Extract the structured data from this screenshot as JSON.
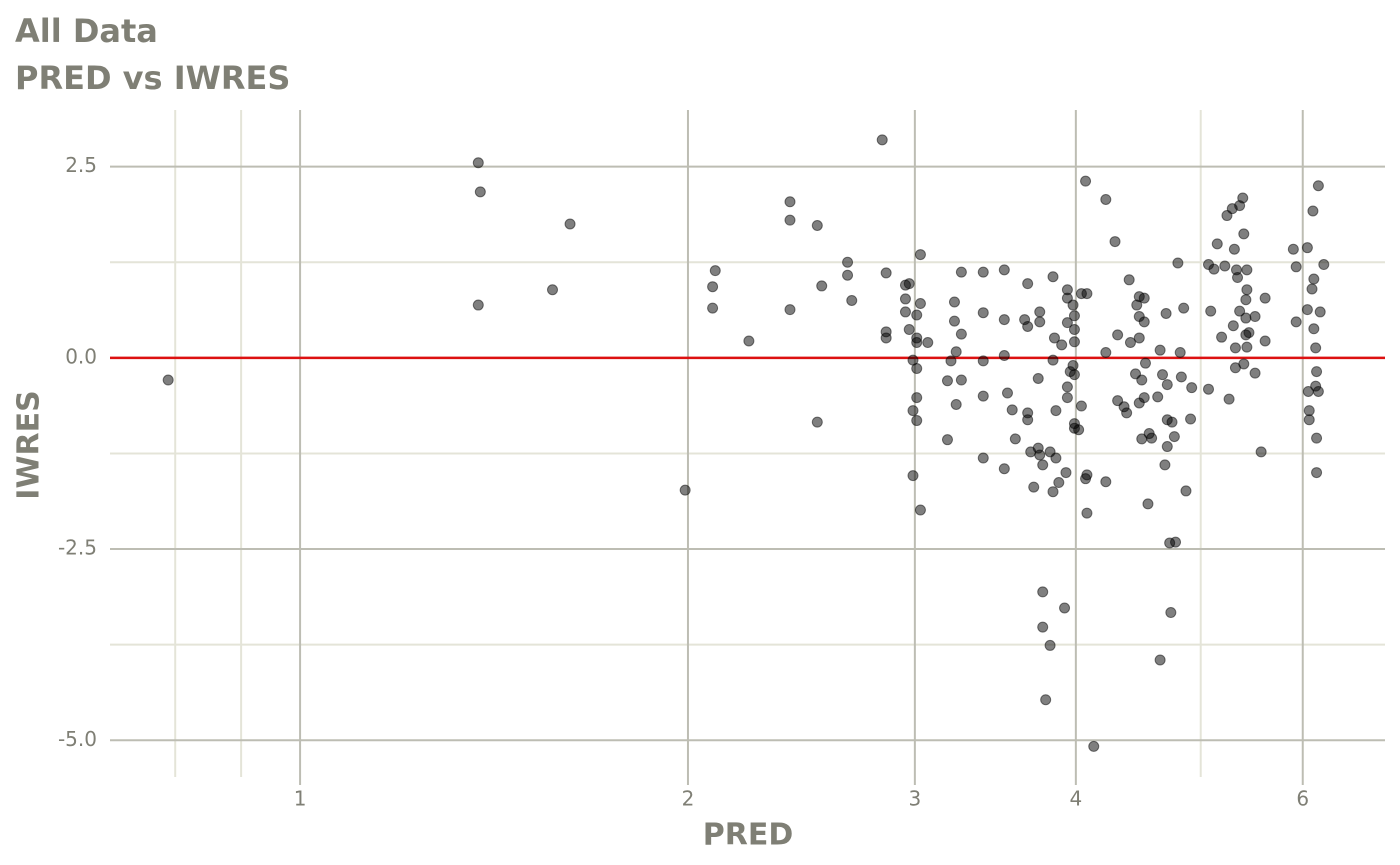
{
  "chart_data": {
    "type": "scatter",
    "title": "All Data",
    "subtitle": "PRED vs IWRES",
    "x_label": "PRED",
    "y_label": "IWRES",
    "log_x": true,
    "grid": true,
    "color": "#000000",
    "opacity": 0.5,
    "xlim": [
      0.712,
      6.95
    ],
    "xticks": [
      1,
      2,
      3,
      4,
      6
    ],
    "xminorticks": [
      0.8,
      0.9,
      5
    ],
    "ylim": [
      -5.48,
      3.24
    ],
    "yticks": [
      {
        "value": -5,
        "label": "-5.0"
      },
      -2.5,
      {
        "value": 0,
        "label": "0.0"
      },
      2.5
    ],
    "yminorticks": [
      -3.75,
      -1.25,
      1.25
    ],
    "hline": {
      "value": 0,
      "color": "#dd1111"
    },
    "x": [
      0.79,
      1.375,
      1.38,
      1.375,
      1.57,
      1.62,
      1.99,
      2.09,
      2.1,
      2.09,
      2.23,
      2.4,
      2.4,
      2.4,
      2.52,
      2.54,
      2.52,
      2.66,
      2.66,
      2.68,
      2.83,
      2.85,
      2.85,
      2.85,
      2.95,
      2.97,
      2.95,
      2.95,
      2.97,
      2.99,
      2.99,
      2.99,
      3.03,
      3.03,
      3.01,
      3.01,
      3.01,
      3.01,
      3.01,
      3.01,
      3.03,
      3.07,
      3.18,
      3.18,
      3.2,
      3.22,
      3.22,
      3.23,
      3.23,
      3.26,
      3.26,
      3.26,
      3.39,
      3.39,
      3.39,
      3.39,
      3.39,
      3.52,
      3.52,
      3.52,
      3.54,
      3.52,
      3.57,
      3.59,
      3.67,
      3.65,
      3.67,
      3.67,
      3.67,
      3.69,
      3.71,
      3.74,
      3.74,
      3.75,
      3.75,
      3.75,
      3.77,
      3.77,
      3.77,
      3.79,
      3.82,
      3.82,
      3.84,
      3.84,
      3.84,
      3.85,
      3.86,
      3.86,
      3.88,
      3.9,
      3.92,
      3.93,
      3.94,
      3.94,
      3.94,
      3.94,
      3.94,
      3.96,
      3.98,
      3.98,
      3.99,
      3.99,
      3.99,
      3.99,
      3.99,
      3.99,
      4.02,
      4.04,
      4.04,
      4.07,
      4.07,
      4.08,
      4.08,
      4.08,
      4.13,
      4.22,
      4.22,
      4.22,
      4.29,
      4.31,
      4.31,
      4.36,
      4.38,
      4.4,
      4.41,
      4.45,
      4.46,
      4.48,
      4.48,
      4.48,
      4.48,
      4.5,
      4.5,
      4.52,
      4.52,
      4.52,
      4.53,
      4.55,
      4.56,
      4.58,
      4.63,
      4.65,
      4.65,
      4.67,
      4.69,
      4.7,
      4.71,
      4.71,
      4.71,
      4.73,
      4.74,
      4.75,
      4.77,
      4.78,
      4.8,
      4.82,
      4.83,
      4.85,
      4.87,
      4.91,
      4.92,
      5.07,
      5.07,
      5.09,
      5.12,
      5.15,
      5.19,
      5.22,
      5.24,
      5.26,
      5.29,
      5.3,
      5.31,
      5.32,
      5.32,
      5.33,
      5.34,
      5.36,
      5.36,
      5.39,
      5.4,
      5.4,
      5.42,
      5.42,
      5.42,
      5.43,
      5.43,
      5.43,
      5.45,
      5.51,
      5.51,
      5.57,
      5.61,
      5.61,
      5.9,
      5.93,
      5.93,
      6.05,
      6.05,
      6.06,
      6.07,
      6.07,
      6.1,
      6.11,
      6.12,
      6.12,
      6.14,
      6.14,
      6.15,
      6.15,
      6.15,
      6.17,
      6.17,
      6.19,
      6.23
    ],
    "values": [
      -0.29,
      2.55,
      2.17,
      0.69,
      0.89,
      1.75,
      -1.73,
      0.93,
      1.14,
      0.65,
      0.22,
      2.04,
      1.8,
      0.63,
      1.73,
      0.94,
      -0.84,
      1.25,
      1.08,
      0.75,
      2.85,
      1.11,
      0.34,
      0.26,
      0.95,
      0.97,
      0.77,
      0.6,
      0.37,
      -0.03,
      -0.69,
      -1.54,
      1.35,
      0.71,
      0.56,
      0.26,
      0.2,
      -0.14,
      -0.52,
      -0.82,
      -1.99,
      0.2,
      -0.3,
      -1.07,
      -0.04,
      0.73,
      0.48,
      0.08,
      -0.61,
      1.12,
      0.31,
      -0.29,
      1.12,
      0.59,
      -0.04,
      -0.5,
      -1.31,
      1.15,
      0.5,
      0.03,
      -0.46,
      -1.45,
      -0.68,
      -1.06,
      0.97,
      0.5,
      0.41,
      -0.72,
      -0.81,
      -1.23,
      -1.69,
      -0.27,
      -1.18,
      0.6,
      0.47,
      -1.27,
      -1.4,
      -3.06,
      -3.52,
      -4.47,
      -3.76,
      -1.23,
      1.06,
      -0.03,
      -1.75,
      0.26,
      -0.69,
      -1.31,
      -1.63,
      0.17,
      -3.27,
      -1.5,
      0.89,
      0.78,
      0.46,
      -0.38,
      -0.52,
      -0.18,
      0.69,
      -0.1,
      0.55,
      0.37,
      0.21,
      -0.22,
      -0.86,
      -0.92,
      -0.94,
      0.84,
      -0.63,
      2.31,
      -1.58,
      0.84,
      -1.53,
      -2.03,
      -5.08,
      2.07,
      0.07,
      -1.62,
      1.52,
      0.3,
      -0.56,
      -0.64,
      -0.72,
      1.02,
      0.2,
      -0.21,
      0.69,
      0.8,
      0.26,
      0.54,
      -0.59,
      -0.29,
      -1.06,
      0.78,
      0.47,
      -0.52,
      -0.07,
      -1.91,
      -0.99,
      -1.05,
      -0.51,
      0.1,
      -3.95,
      -0.22,
      -1.4,
      0.58,
      -0.35,
      -0.81,
      -1.16,
      -2.42,
      -3.33,
      -0.84,
      -1.03,
      -2.41,
      1.24,
      0.07,
      -0.25,
      0.65,
      -1.74,
      -0.8,
      -0.39,
      1.22,
      -0.41,
      0.61,
      1.16,
      1.49,
      0.27,
      1.2,
      1.86,
      -0.54,
      1.95,
      0.42,
      1.42,
      0.13,
      -0.13,
      1.15,
      1.05,
      1.99,
      0.61,
      2.09,
      1.62,
      -0.08,
      0.76,
      0.52,
      0.3,
      1.15,
      0.89,
      0.14,
      0.33,
      -0.2,
      0.54,
      -1.23,
      0.78,
      0.22,
      1.42,
      1.19,
      0.47,
      1.44,
      0.63,
      -0.44,
      -0.69,
      -0.81,
      0.9,
      1.92,
      1.03,
      0.38,
      0.13,
      -0.37,
      -0.18,
      -1.05,
      -1.5,
      2.25,
      -0.44,
      0.6,
      1.22
    ]
  }
}
